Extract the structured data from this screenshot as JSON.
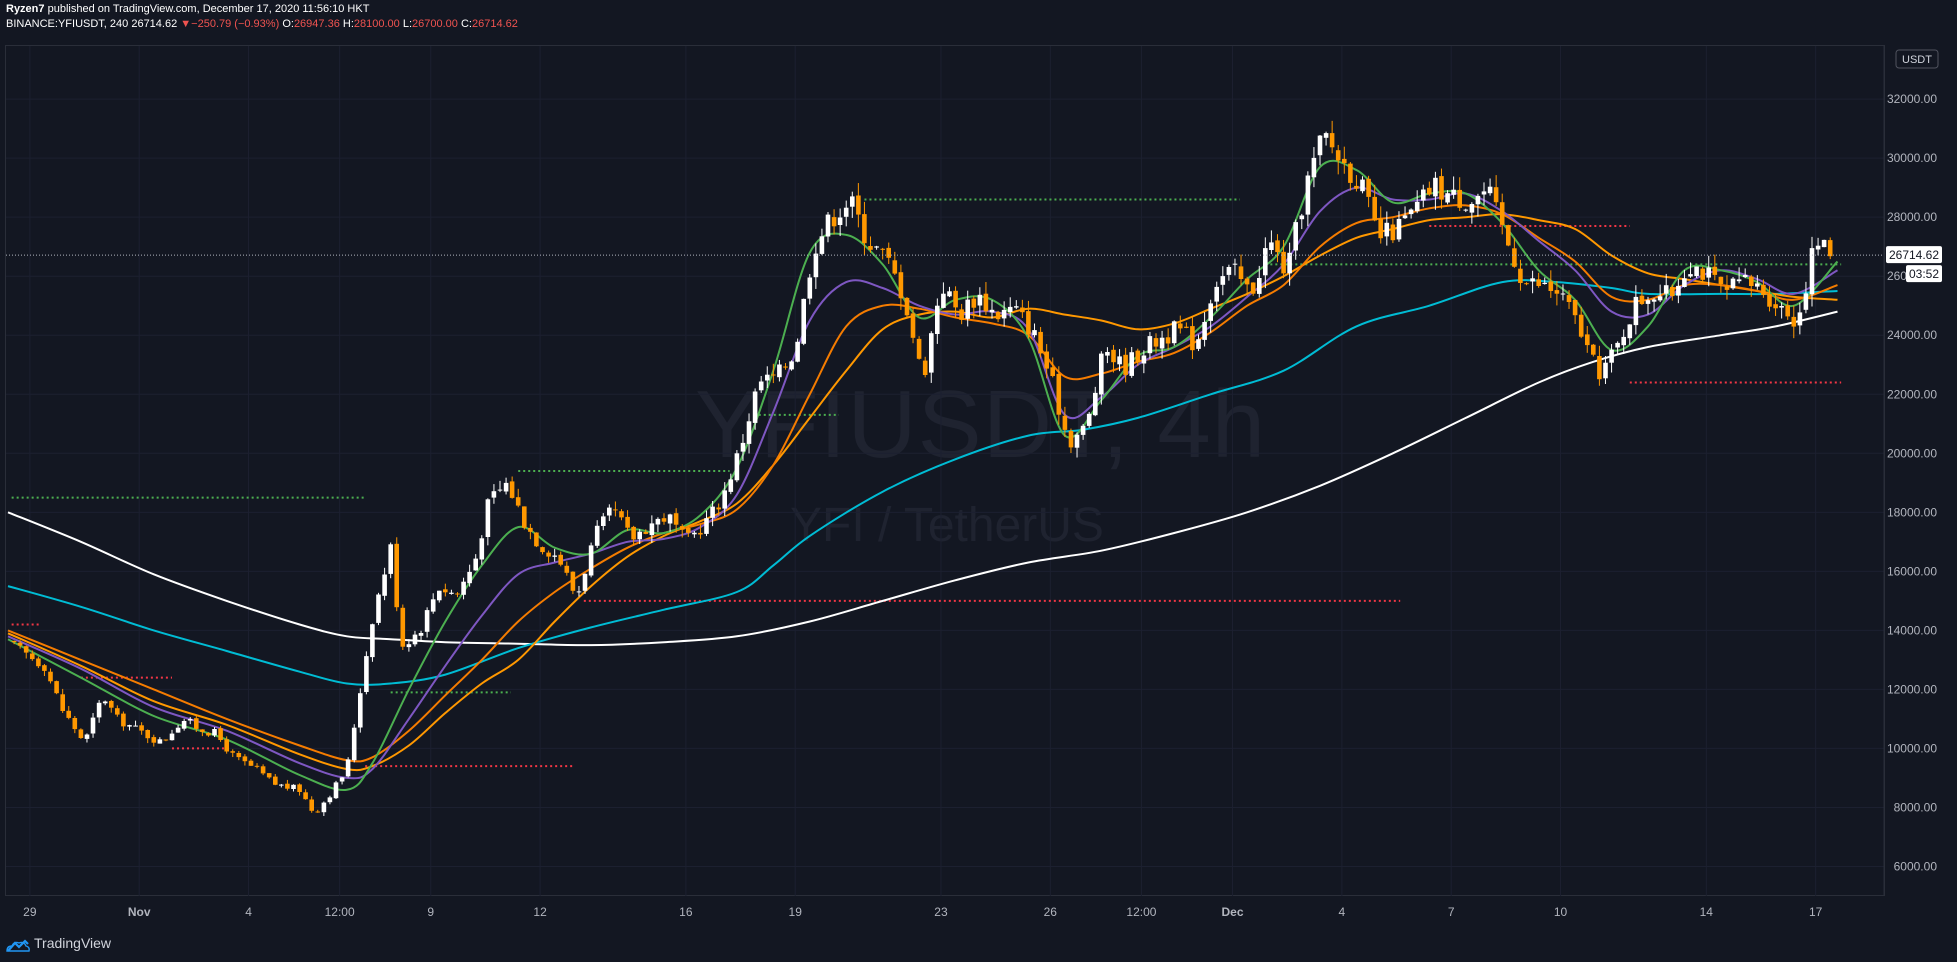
{
  "header": {
    "author": "Ryzen7",
    "published": " published on TradingView.com, December 17, 2020 11:56:10 HKT",
    "symbol": "BINANCE:YFIUSDT, 240",
    "last": "26714.62",
    "change_arrow": "▼",
    "change": "−250.79 (−0.93%)",
    "o_label": "O:",
    "o_val": "26947.36",
    "h_label": "H:",
    "h_val": "28100.00",
    "l_label": "L:",
    "l_val": "26700.00",
    "c_label": "C:",
    "c_val": "26714.62"
  },
  "watermark": {
    "symbol": "YFIUSDT, 4h",
    "pair": "YFI / TetherUS"
  },
  "footer": {
    "brand": "TradingView",
    "logo_icon": "tradingview-cloud-icon"
  },
  "colors": {
    "background": "#131722",
    "up": "#ffffff",
    "down": "#ff9800",
    "ema1": "#4caf50",
    "ema2": "#7e57c2",
    "ema3": "#f57c00",
    "ema4": "#ff9800",
    "ema100": "#00bcd4",
    "ema200": "#ffffff",
    "support": "#4caf50",
    "resistance": "#f23645"
  },
  "chart_data": {
    "type": "candlestick",
    "currency_badge": "USDT",
    "y_range": [
      5000,
      33800
    ],
    "y_ticks": [
      6000,
      8000,
      10000,
      12000,
      14000,
      16000,
      18000,
      20000,
      22000,
      24000,
      26000,
      28000,
      30000,
      32000
    ],
    "y_tick_labels": [
      "6000.00",
      "8000.00",
      "10000.00",
      "12000.00",
      "14000.00",
      "16000.00",
      "18000.00",
      "20000.00",
      "22000.00",
      "24000.00",
      "26000.00",
      "28000.00",
      "30000.00",
      "32000.00"
    ],
    "x_range": [
      0,
      49.5
    ],
    "x_ticks": [
      {
        "x": 0.6,
        "label": "29",
        "bold": false
      },
      {
        "x": 3.6,
        "label": "Nov",
        "bold": true
      },
      {
        "x": 6.6,
        "label": "4",
        "bold": false
      },
      {
        "x": 9.1,
        "label": "12:00",
        "bold": false
      },
      {
        "x": 11.6,
        "label": "9",
        "bold": false
      },
      {
        "x": 14.6,
        "label": "12",
        "bold": false
      },
      {
        "x": 18.6,
        "label": "16",
        "bold": false
      },
      {
        "x": 21.6,
        "label": "19",
        "bold": false
      },
      {
        "x": 25.6,
        "label": "23",
        "bold": false
      },
      {
        "x": 28.6,
        "label": "26",
        "bold": false
      },
      {
        "x": 31.1,
        "label": "12:00",
        "bold": false
      },
      {
        "x": 33.6,
        "label": "Dec",
        "bold": true
      },
      {
        "x": 36.6,
        "label": "4",
        "bold": false
      },
      {
        "x": 39.6,
        "label": "7",
        "bold": false
      },
      {
        "x": 42.6,
        "label": "10",
        "bold": false
      },
      {
        "x": 46.6,
        "label": "14",
        "bold": false
      },
      {
        "x": 49.6,
        "label": "17",
        "bold": false
      }
    ],
    "last_price": 26714.62,
    "last_price_label": "26714.62",
    "countdown": "03:52",
    "price_path": [
      [
        0,
        13600
      ],
      [
        1,
        12800
      ],
      [
        1.5,
        11300
      ],
      [
        2.1,
        10200
      ],
      [
        2.6,
        11800
      ],
      [
        3,
        11000
      ],
      [
        3.6,
        10600
      ],
      [
        4.2,
        10200
      ],
      [
        4.8,
        11000
      ],
      [
        5.2,
        10700
      ],
      [
        5.7,
        10500
      ],
      [
        6.2,
        9700
      ],
      [
        6.8,
        9300
      ],
      [
        7.3,
        8800
      ],
      [
        8,
        8600
      ],
      [
        8.4,
        7800
      ],
      [
        8.8,
        8400
      ],
      [
        9.3,
        9300
      ],
      [
        9.6,
        11500
      ],
      [
        10,
        14400
      ],
      [
        10.5,
        16800
      ],
      [
        10.8,
        13500
      ],
      [
        11.3,
        14000
      ],
      [
        11.8,
        15500
      ],
      [
        12.3,
        15200
      ],
      [
        12.8,
        16300
      ],
      [
        13.2,
        18400
      ],
      [
        13.7,
        19000
      ],
      [
        14.2,
        17600
      ],
      [
        14.6,
        16900
      ],
      [
        15.1,
        16500
      ],
      [
        15.6,
        15100
      ],
      [
        16.1,
        17200
      ],
      [
        16.6,
        18100
      ],
      [
        17.1,
        17100
      ],
      [
        17.6,
        17600
      ],
      [
        18.1,
        17900
      ],
      [
        18.6,
        17000
      ],
      [
        19.1,
        17600
      ],
      [
        19.6,
        18500
      ],
      [
        20.1,
        20200
      ],
      [
        20.6,
        22400
      ],
      [
        21.1,
        22600
      ],
      [
        21.6,
        23500
      ],
      [
        22.1,
        27000
      ],
      [
        22.6,
        28000
      ],
      [
        23.1,
        28600
      ],
      [
        23.6,
        27200
      ],
      [
        24.1,
        26600
      ],
      [
        24.6,
        25300
      ],
      [
        25.1,
        22500
      ],
      [
        25.6,
        25800
      ],
      [
        26.1,
        24700
      ],
      [
        26.6,
        25400
      ],
      [
        27.1,
        24700
      ],
      [
        27.6,
        24900
      ],
      [
        28.1,
        24200
      ],
      [
        28.6,
        22600
      ],
      [
        29.1,
        20400
      ],
      [
        29.6,
        20900
      ],
      [
        30.1,
        23600
      ],
      [
        30.6,
        22900
      ],
      [
        31.1,
        23500
      ],
      [
        31.6,
        23900
      ],
      [
        32.1,
        24200
      ],
      [
        32.6,
        23700
      ],
      [
        33.1,
        25800
      ],
      [
        33.6,
        26200
      ],
      [
        34.1,
        25400
      ],
      [
        34.6,
        27200
      ],
      [
        35.1,
        26100
      ],
      [
        35.6,
        29000
      ],
      [
        36.1,
        30800
      ],
      [
        36.6,
        29900
      ],
      [
        37.1,
        29200
      ],
      [
        37.6,
        27300
      ],
      [
        38.1,
        27600
      ],
      [
        38.6,
        28200
      ],
      [
        39.1,
        29100
      ],
      [
        39.6,
        28700
      ],
      [
        40.1,
        28600
      ],
      [
        40.6,
        28900
      ],
      [
        41.1,
        27300
      ],
      [
        41.6,
        25800
      ],
      [
        42.1,
        25700
      ],
      [
        42.6,
        25400
      ],
      [
        43.1,
        24300
      ],
      [
        43.6,
        22700
      ],
      [
        44.1,
        23400
      ],
      [
        44.6,
        25000
      ],
      [
        45.1,
        25500
      ],
      [
        45.6,
        25300
      ],
      [
        46.1,
        26500
      ],
      [
        46.6,
        26100
      ],
      [
        47.1,
        25400
      ],
      [
        47.6,
        25800
      ],
      [
        48.1,
        25600
      ],
      [
        48.6,
        25000
      ],
      [
        49.1,
        24500
      ],
      [
        49.6,
        27200
      ],
      [
        50.1,
        26714
      ]
    ],
    "ema_200": [
      [
        0,
        18000
      ],
      [
        2,
        17000
      ],
      [
        4,
        15900
      ],
      [
        6,
        15000
      ],
      [
        8,
        14200
      ],
      [
        9.3,
        13800
      ],
      [
        10.5,
        13700
      ],
      [
        12,
        13600
      ],
      [
        14,
        13550
      ],
      [
        16,
        13500
      ],
      [
        18,
        13600
      ],
      [
        20,
        13800
      ],
      [
        22,
        14300
      ],
      [
        24,
        15000
      ],
      [
        26,
        15700
      ],
      [
        28,
        16300
      ],
      [
        30,
        16700
      ],
      [
        32,
        17300
      ],
      [
        34,
        18000
      ],
      [
        36,
        18900
      ],
      [
        38,
        20000
      ],
      [
        40,
        21200
      ],
      [
        42,
        22400
      ],
      [
        43.5,
        23100
      ],
      [
        45,
        23600
      ],
      [
        47,
        24000
      ],
      [
        48.5,
        24300
      ],
      [
        50.2,
        24800
      ]
    ],
    "ema_100": [
      [
        0,
        15500
      ],
      [
        2,
        14800
      ],
      [
        4,
        14000
      ],
      [
        6,
        13300
      ],
      [
        8,
        12600
      ],
      [
        9.3,
        12200
      ],
      [
        10.5,
        12200
      ],
      [
        12,
        12500
      ],
      [
        14,
        13400
      ],
      [
        16,
        14100
      ],
      [
        18,
        14700
      ],
      [
        20,
        15300
      ],
      [
        21,
        16200
      ],
      [
        22,
        17200
      ],
      [
        24,
        18700
      ],
      [
        26,
        19800
      ],
      [
        28,
        20600
      ],
      [
        29.5,
        20800
      ],
      [
        31,
        21200
      ],
      [
        33,
        22000
      ],
      [
        35,
        22800
      ],
      [
        37,
        24300
      ],
      [
        39,
        25000
      ],
      [
        41,
        25800
      ],
      [
        42.5,
        25800
      ],
      [
        44,
        25600
      ],
      [
        45,
        25400
      ],
      [
        47,
        25400
      ],
      [
        48.5,
        25400
      ],
      [
        50.2,
        25500
      ]
    ],
    "ema_slow": [
      [
        0,
        13900
      ],
      [
        2,
        12800
      ],
      [
        4,
        11600
      ],
      [
        6,
        10800
      ],
      [
        8,
        9800
      ],
      [
        9.3,
        9300
      ],
      [
        10,
        9400
      ],
      [
        11,
        10100
      ],
      [
        12,
        11200
      ],
      [
        13,
        12200
      ],
      [
        14,
        13000
      ],
      [
        15,
        14300
      ],
      [
        16,
        15500
      ],
      [
        17,
        16500
      ],
      [
        18,
        17200
      ],
      [
        19,
        17700
      ],
      [
        20,
        18300
      ],
      [
        21,
        19600
      ],
      [
        22,
        21200
      ],
      [
        23,
        22800
      ],
      [
        24,
        24200
      ],
      [
        25,
        24700
      ],
      [
        26,
        24800
      ],
      [
        27,
        24600
      ],
      [
        28,
        24900
      ],
      [
        29,
        24700
      ],
      [
        30,
        24500
      ],
      [
        31,
        24200
      ],
      [
        32,
        24400
      ],
      [
        33,
        24900
      ],
      [
        34,
        25400
      ],
      [
        35,
        26000
      ],
      [
        36,
        26700
      ],
      [
        37,
        27300
      ],
      [
        38,
        27600
      ],
      [
        39,
        27900
      ],
      [
        40,
        28000
      ],
      [
        41,
        28100
      ],
      [
        42,
        27900
      ],
      [
        43,
        27600
      ],
      [
        44,
        26700
      ],
      [
        45,
        26100
      ],
      [
        46,
        25900
      ],
      [
        47,
        25700
      ],
      [
        48,
        25500
      ],
      [
        49,
        25300
      ],
      [
        50.2,
        25200
      ]
    ],
    "ema_mid": [
      [
        0,
        14000
      ],
      [
        2,
        13000
      ],
      [
        4,
        12000
      ],
      [
        6,
        11000
      ],
      [
        8,
        10100
      ],
      [
        9.3,
        9600
      ],
      [
        10,
        9700
      ],
      [
        11,
        10600
      ],
      [
        12,
        11800
      ],
      [
        13,
        13000
      ],
      [
        14,
        14300
      ],
      [
        15,
        15300
      ],
      [
        16,
        16100
      ],
      [
        17,
        16800
      ],
      [
        18,
        17300
      ],
      [
        19,
        17600
      ],
      [
        20,
        18100
      ],
      [
        21,
        19600
      ],
      [
        22,
        22000
      ],
      [
        23,
        24300
      ],
      [
        24,
        25000
      ],
      [
        25,
        24900
      ],
      [
        26,
        24600
      ],
      [
        27,
        24400
      ],
      [
        28,
        24000
      ],
      [
        29,
        22600
      ],
      [
        30,
        22700
      ],
      [
        31,
        23100
      ],
      [
        32,
        23400
      ],
      [
        33,
        24100
      ],
      [
        34,
        25000
      ],
      [
        35,
        25700
      ],
      [
        36,
        27000
      ],
      [
        37,
        27800
      ],
      [
        38,
        28000
      ],
      [
        39,
        28300
      ],
      [
        40,
        28400
      ],
      [
        41,
        28100
      ],
      [
        42,
        27300
      ],
      [
        43,
        26500
      ],
      [
        44,
        25300
      ],
      [
        45,
        25200
      ],
      [
        46,
        25700
      ],
      [
        47,
        25700
      ],
      [
        48,
        25500
      ],
      [
        49,
        25200
      ],
      [
        50.2,
        25700
      ]
    ],
    "ema_fast": [
      [
        0,
        13800
      ],
      [
        2,
        12700
      ],
      [
        4,
        11400
      ],
      [
        6,
        10600
      ],
      [
        8,
        9500
      ],
      [
        9.3,
        9000
      ],
      [
        10,
        9300
      ],
      [
        11,
        11000
      ],
      [
        12,
        12800
      ],
      [
        13,
        14500
      ],
      [
        14,
        15900
      ],
      [
        15,
        16300
      ],
      [
        16,
        16600
      ],
      [
        17,
        17000
      ],
      [
        18,
        17100
      ],
      [
        19,
        17500
      ],
      [
        20,
        18600
      ],
      [
        21,
        21400
      ],
      [
        22,
        24500
      ],
      [
        23,
        25800
      ],
      [
        24,
        25600
      ],
      [
        25,
        25000
      ],
      [
        26,
        24700
      ],
      [
        27,
        24800
      ],
      [
        28,
        24200
      ],
      [
        29,
        21300
      ],
      [
        30,
        21900
      ],
      [
        31,
        23000
      ],
      [
        32,
        23600
      ],
      [
        33,
        24300
      ],
      [
        34,
        25300
      ],
      [
        35,
        26400
      ],
      [
        36,
        28200
      ],
      [
        37,
        29000
      ],
      [
        38,
        28600
      ],
      [
        39,
        28600
      ],
      [
        40,
        28800
      ],
      [
        41,
        28200
      ],
      [
        42,
        27200
      ],
      [
        43,
        26200
      ],
      [
        44,
        24800
      ],
      [
        45,
        24700
      ],
      [
        46,
        25700
      ],
      [
        47,
        26200
      ],
      [
        48,
        25900
      ],
      [
        49,
        25400
      ],
      [
        50.2,
        26200
      ]
    ],
    "ema_fastest": [
      [
        0,
        13700
      ],
      [
        2,
        12400
      ],
      [
        4,
        11100
      ],
      [
        6,
        10300
      ],
      [
        8,
        9100
      ],
      [
        9.3,
        8600
      ],
      [
        10,
        9500
      ],
      [
        11,
        12000
      ],
      [
        12,
        14300
      ],
      [
        13,
        16200
      ],
      [
        14,
        17500
      ],
      [
        15,
        16800
      ],
      [
        16,
        16600
      ],
      [
        17,
        17400
      ],
      [
        18,
        17300
      ],
      [
        19,
        17900
      ],
      [
        20,
        19500
      ],
      [
        21,
        22800
      ],
      [
        22,
        26800
      ],
      [
        23,
        27400
      ],
      [
        24,
        26400
      ],
      [
        25,
        24600
      ],
      [
        26,
        25200
      ],
      [
        27,
        25200
      ],
      [
        28,
        23900
      ],
      [
        29,
        20600
      ],
      [
        30,
        21800
      ],
      [
        31,
        23300
      ],
      [
        32,
        23600
      ],
      [
        33,
        24600
      ],
      [
        34,
        25900
      ],
      [
        35,
        27000
      ],
      [
        36,
        29700
      ],
      [
        37,
        29600
      ],
      [
        38,
        28500
      ],
      [
        39,
        28800
      ],
      [
        40,
        28800
      ],
      [
        41,
        27800
      ],
      [
        42,
        26200
      ],
      [
        43,
        25200
      ],
      [
        44,
        23500
      ],
      [
        45,
        24300
      ],
      [
        46,
        26200
      ],
      [
        47,
        26200
      ],
      [
        48,
        25800
      ],
      [
        49,
        25000
      ],
      [
        50.2,
        26500
      ]
    ],
    "support_levels": [
      {
        "y": 18500,
        "x1": 0.1,
        "x2": 9.8
      },
      {
        "y": 28600,
        "x1": 23.5,
        "x2": 33.8
      },
      {
        "y": 19400,
        "x1": 14,
        "x2": 19.8
      },
      {
        "y": 11900,
        "x1": 10.5,
        "x2": 13.8
      },
      {
        "y": 21300,
        "x1": 20.6,
        "x2": 22.8
      },
      {
        "y": 26400,
        "x1": 34.5,
        "x2": 50.3
      }
    ],
    "resistance_levels": [
      {
        "y": 14200,
        "x1": 0.1,
        "x2": 0.9
      },
      {
        "y": 12400,
        "x1": 2,
        "x2": 4.5
      },
      {
        "y": 10000,
        "x1": 4.5,
        "x2": 6
      },
      {
        "y": 9400,
        "x1": 9.8,
        "x2": 15.5
      },
      {
        "y": 15000,
        "x1": 15.8,
        "x2": 38.2
      },
      {
        "y": 27700,
        "x1": 39,
        "x2": 44.5
      },
      {
        "y": 22400,
        "x1": 44.5,
        "x2": 50.3
      }
    ],
    "ma_lines": [
      {
        "key": "ema_200",
        "color": "#ffffff"
      },
      {
        "key": "ema_100",
        "color": "#00bcd4"
      },
      {
        "key": "ema_slow",
        "color": "#ff9800"
      },
      {
        "key": "ema_mid",
        "color": "#f57c00"
      },
      {
        "key": "ema_fast",
        "color": "#7e57c2"
      },
      {
        "key": "ema_fastest",
        "color": "#4caf50"
      }
    ]
  }
}
